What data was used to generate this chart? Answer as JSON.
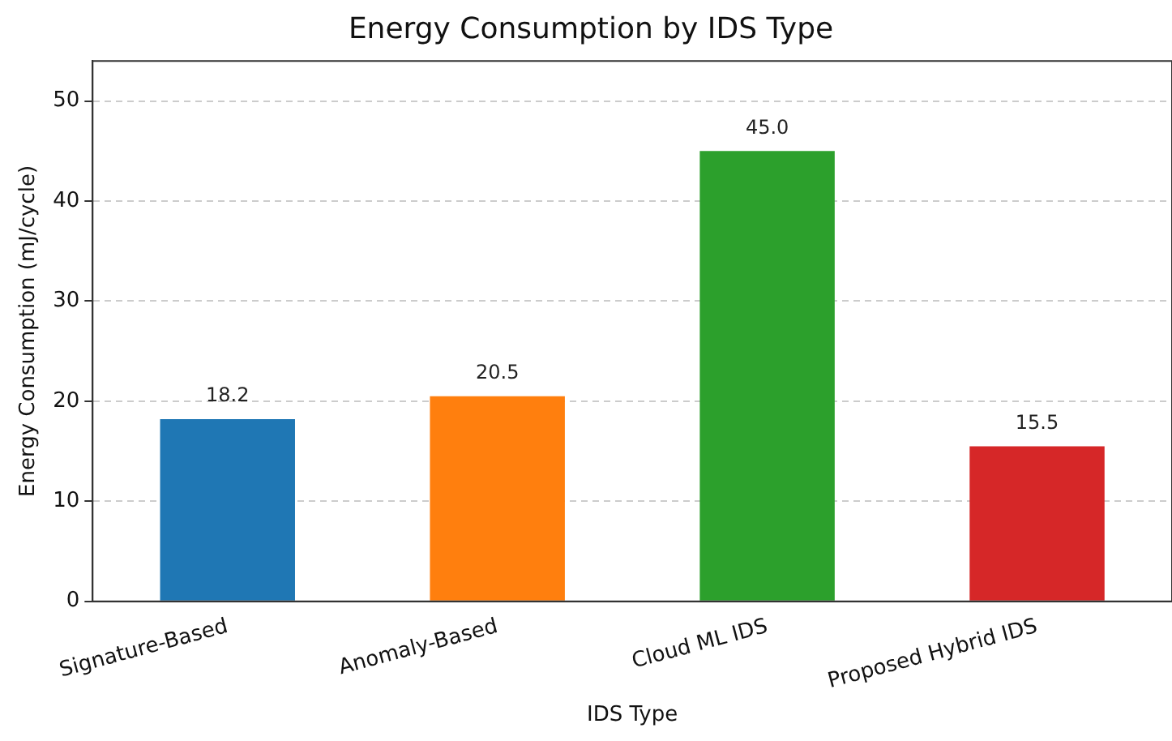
{
  "chart_data": {
    "type": "bar",
    "title": "Energy Consumption by IDS Type",
    "xlabel": "IDS Type",
    "ylabel": "Energy Consumption (mJ/cycle)",
    "categories": [
      "Signature-Based",
      "Anomaly-Based",
      "Cloud ML IDS",
      "Proposed Hybrid IDS"
    ],
    "values": [
      18.2,
      20.5,
      45.0,
      15.5
    ],
    "colors": [
      "#1f77b4",
      "#ff7f0e",
      "#2ca02c",
      "#d62728"
    ],
    "value_labels": [
      "18.2",
      "20.5",
      "45.0",
      "15.5"
    ],
    "ylim": [
      0,
      54
    ],
    "yticks": [
      0,
      10,
      20,
      30,
      40,
      50
    ],
    "grid": "y",
    "legend": false
  }
}
